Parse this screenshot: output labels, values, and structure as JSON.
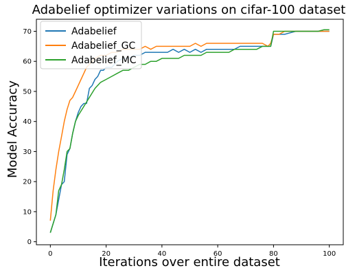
{
  "chart_data": {
    "type": "line",
    "title": "Adabelief optimizer variations on cifar-100 dataset",
    "xlabel": "Iterations over entire dataset",
    "ylabel": "Model Accuracy",
    "xlim": [
      -5,
      105
    ],
    "ylim": [
      -1,
      74
    ],
    "xticks": [
      0,
      20,
      40,
      60,
      80,
      100
    ],
    "yticks": [
      0,
      10,
      20,
      30,
      40,
      50,
      60,
      70
    ],
    "grid": false,
    "legend_position": "top-left",
    "series": [
      {
        "name": "Adabelief",
        "color": "#1f77b4",
        "points": [
          [
            0,
            3
          ],
          [
            2,
            9
          ],
          [
            4,
            19
          ],
          [
            5,
            20
          ],
          [
            6,
            29
          ],
          [
            7,
            31
          ],
          [
            8,
            36
          ],
          [
            9,
            40
          ],
          [
            10,
            43
          ],
          [
            11,
            45
          ],
          [
            12,
            46
          ],
          [
            13,
            46
          ],
          [
            14,
            51
          ],
          [
            15,
            52
          ],
          [
            16,
            54
          ],
          [
            17,
            55
          ],
          [
            18,
            57
          ],
          [
            19,
            57
          ],
          [
            20,
            58
          ],
          [
            22,
            58
          ],
          [
            24,
            60
          ],
          [
            26,
            61
          ],
          [
            28,
            61
          ],
          [
            30,
            62
          ],
          [
            32,
            62
          ],
          [
            34,
            63
          ],
          [
            36,
            63
          ],
          [
            38,
            63
          ],
          [
            40,
            63
          ],
          [
            42,
            63
          ],
          [
            44,
            64
          ],
          [
            46,
            63
          ],
          [
            48,
            64
          ],
          [
            50,
            63
          ],
          [
            52,
            64
          ],
          [
            54,
            63
          ],
          [
            56,
            64
          ],
          [
            58,
            64
          ],
          [
            60,
            64
          ],
          [
            62,
            64
          ],
          [
            64,
            64
          ],
          [
            66,
            64
          ],
          [
            68,
            65
          ],
          [
            70,
            65
          ],
          [
            72,
            65
          ],
          [
            74,
            65
          ],
          [
            76,
            65
          ],
          [
            78,
            65
          ],
          [
            79,
            65
          ],
          [
            80,
            69
          ],
          [
            82,
            69
          ],
          [
            84,
            69
          ],
          [
            86,
            69.5
          ],
          [
            88,
            70
          ],
          [
            90,
            70
          ],
          [
            92,
            70
          ],
          [
            94,
            70
          ],
          [
            96,
            70
          ],
          [
            98,
            70
          ],
          [
            100,
            70
          ]
        ]
      },
      {
        "name": "Adabelief_GC",
        "color": "#ff7f0e",
        "points": [
          [
            0,
            7
          ],
          [
            1,
            17
          ],
          [
            2,
            24
          ],
          [
            3,
            30
          ],
          [
            4,
            35
          ],
          [
            5,
            40
          ],
          [
            6,
            44
          ],
          [
            7,
            47
          ],
          [
            8,
            48
          ],
          [
            9,
            50
          ],
          [
            10,
            52
          ],
          [
            11,
            54
          ],
          [
            12,
            56
          ],
          [
            13,
            58
          ],
          [
            14,
            59
          ],
          [
            15,
            60
          ],
          [
            16,
            61
          ],
          [
            18,
            62
          ],
          [
            20,
            62
          ],
          [
            22,
            63
          ],
          [
            24,
            63
          ],
          [
            26,
            64
          ],
          [
            28,
            64
          ],
          [
            30,
            64
          ],
          [
            32,
            64
          ],
          [
            34,
            65
          ],
          [
            36,
            64
          ],
          [
            38,
            65
          ],
          [
            40,
            65
          ],
          [
            42,
            65
          ],
          [
            44,
            65
          ],
          [
            46,
            65
          ],
          [
            48,
            65
          ],
          [
            50,
            65
          ],
          [
            52,
            66
          ],
          [
            54,
            65
          ],
          [
            56,
            66
          ],
          [
            58,
            66
          ],
          [
            60,
            66
          ],
          [
            62,
            66
          ],
          [
            64,
            66
          ],
          [
            66,
            66
          ],
          [
            68,
            66
          ],
          [
            70,
            66
          ],
          [
            72,
            66
          ],
          [
            74,
            66
          ],
          [
            76,
            66
          ],
          [
            78,
            65
          ],
          [
            79,
            66
          ],
          [
            80,
            69
          ],
          [
            82,
            69
          ],
          [
            84,
            70
          ],
          [
            86,
            70
          ],
          [
            88,
            70
          ],
          [
            90,
            70
          ],
          [
            92,
            70
          ],
          [
            94,
            70
          ],
          [
            96,
            70
          ],
          [
            98,
            70
          ],
          [
            100,
            70
          ]
        ]
      },
      {
        "name": "Adabelief_MC",
        "color": "#2ca02c",
        "points": [
          [
            0,
            3
          ],
          [
            2,
            9
          ],
          [
            3,
            17
          ],
          [
            4,
            19
          ],
          [
            5,
            24
          ],
          [
            6,
            30
          ],
          [
            7,
            31
          ],
          [
            8,
            36
          ],
          [
            9,
            40
          ],
          [
            10,
            42
          ],
          [
            12,
            45
          ],
          [
            14,
            48
          ],
          [
            16,
            51
          ],
          [
            18,
            53
          ],
          [
            20,
            54
          ],
          [
            22,
            55
          ],
          [
            24,
            56
          ],
          [
            26,
            57
          ],
          [
            28,
            57
          ],
          [
            30,
            58
          ],
          [
            32,
            59
          ],
          [
            34,
            59
          ],
          [
            36,
            60
          ],
          [
            38,
            60
          ],
          [
            40,
            61
          ],
          [
            42,
            61
          ],
          [
            44,
            61
          ],
          [
            46,
            61
          ],
          [
            48,
            62
          ],
          [
            50,
            62
          ],
          [
            52,
            62
          ],
          [
            54,
            62
          ],
          [
            56,
            63
          ],
          [
            58,
            63
          ],
          [
            60,
            63
          ],
          [
            62,
            63
          ],
          [
            64,
            63
          ],
          [
            66,
            64
          ],
          [
            68,
            64
          ],
          [
            70,
            64
          ],
          [
            72,
            64
          ],
          [
            74,
            64
          ],
          [
            76,
            65
          ],
          [
            78,
            65
          ],
          [
            79,
            65
          ],
          [
            80,
            70
          ],
          [
            82,
            70
          ],
          [
            84,
            70
          ],
          [
            86,
            70
          ],
          [
            88,
            70
          ],
          [
            90,
            70
          ],
          [
            92,
            70
          ],
          [
            94,
            70
          ],
          [
            96,
            70
          ],
          [
            98,
            70.5
          ],
          [
            100,
            70.5
          ]
        ]
      }
    ]
  }
}
